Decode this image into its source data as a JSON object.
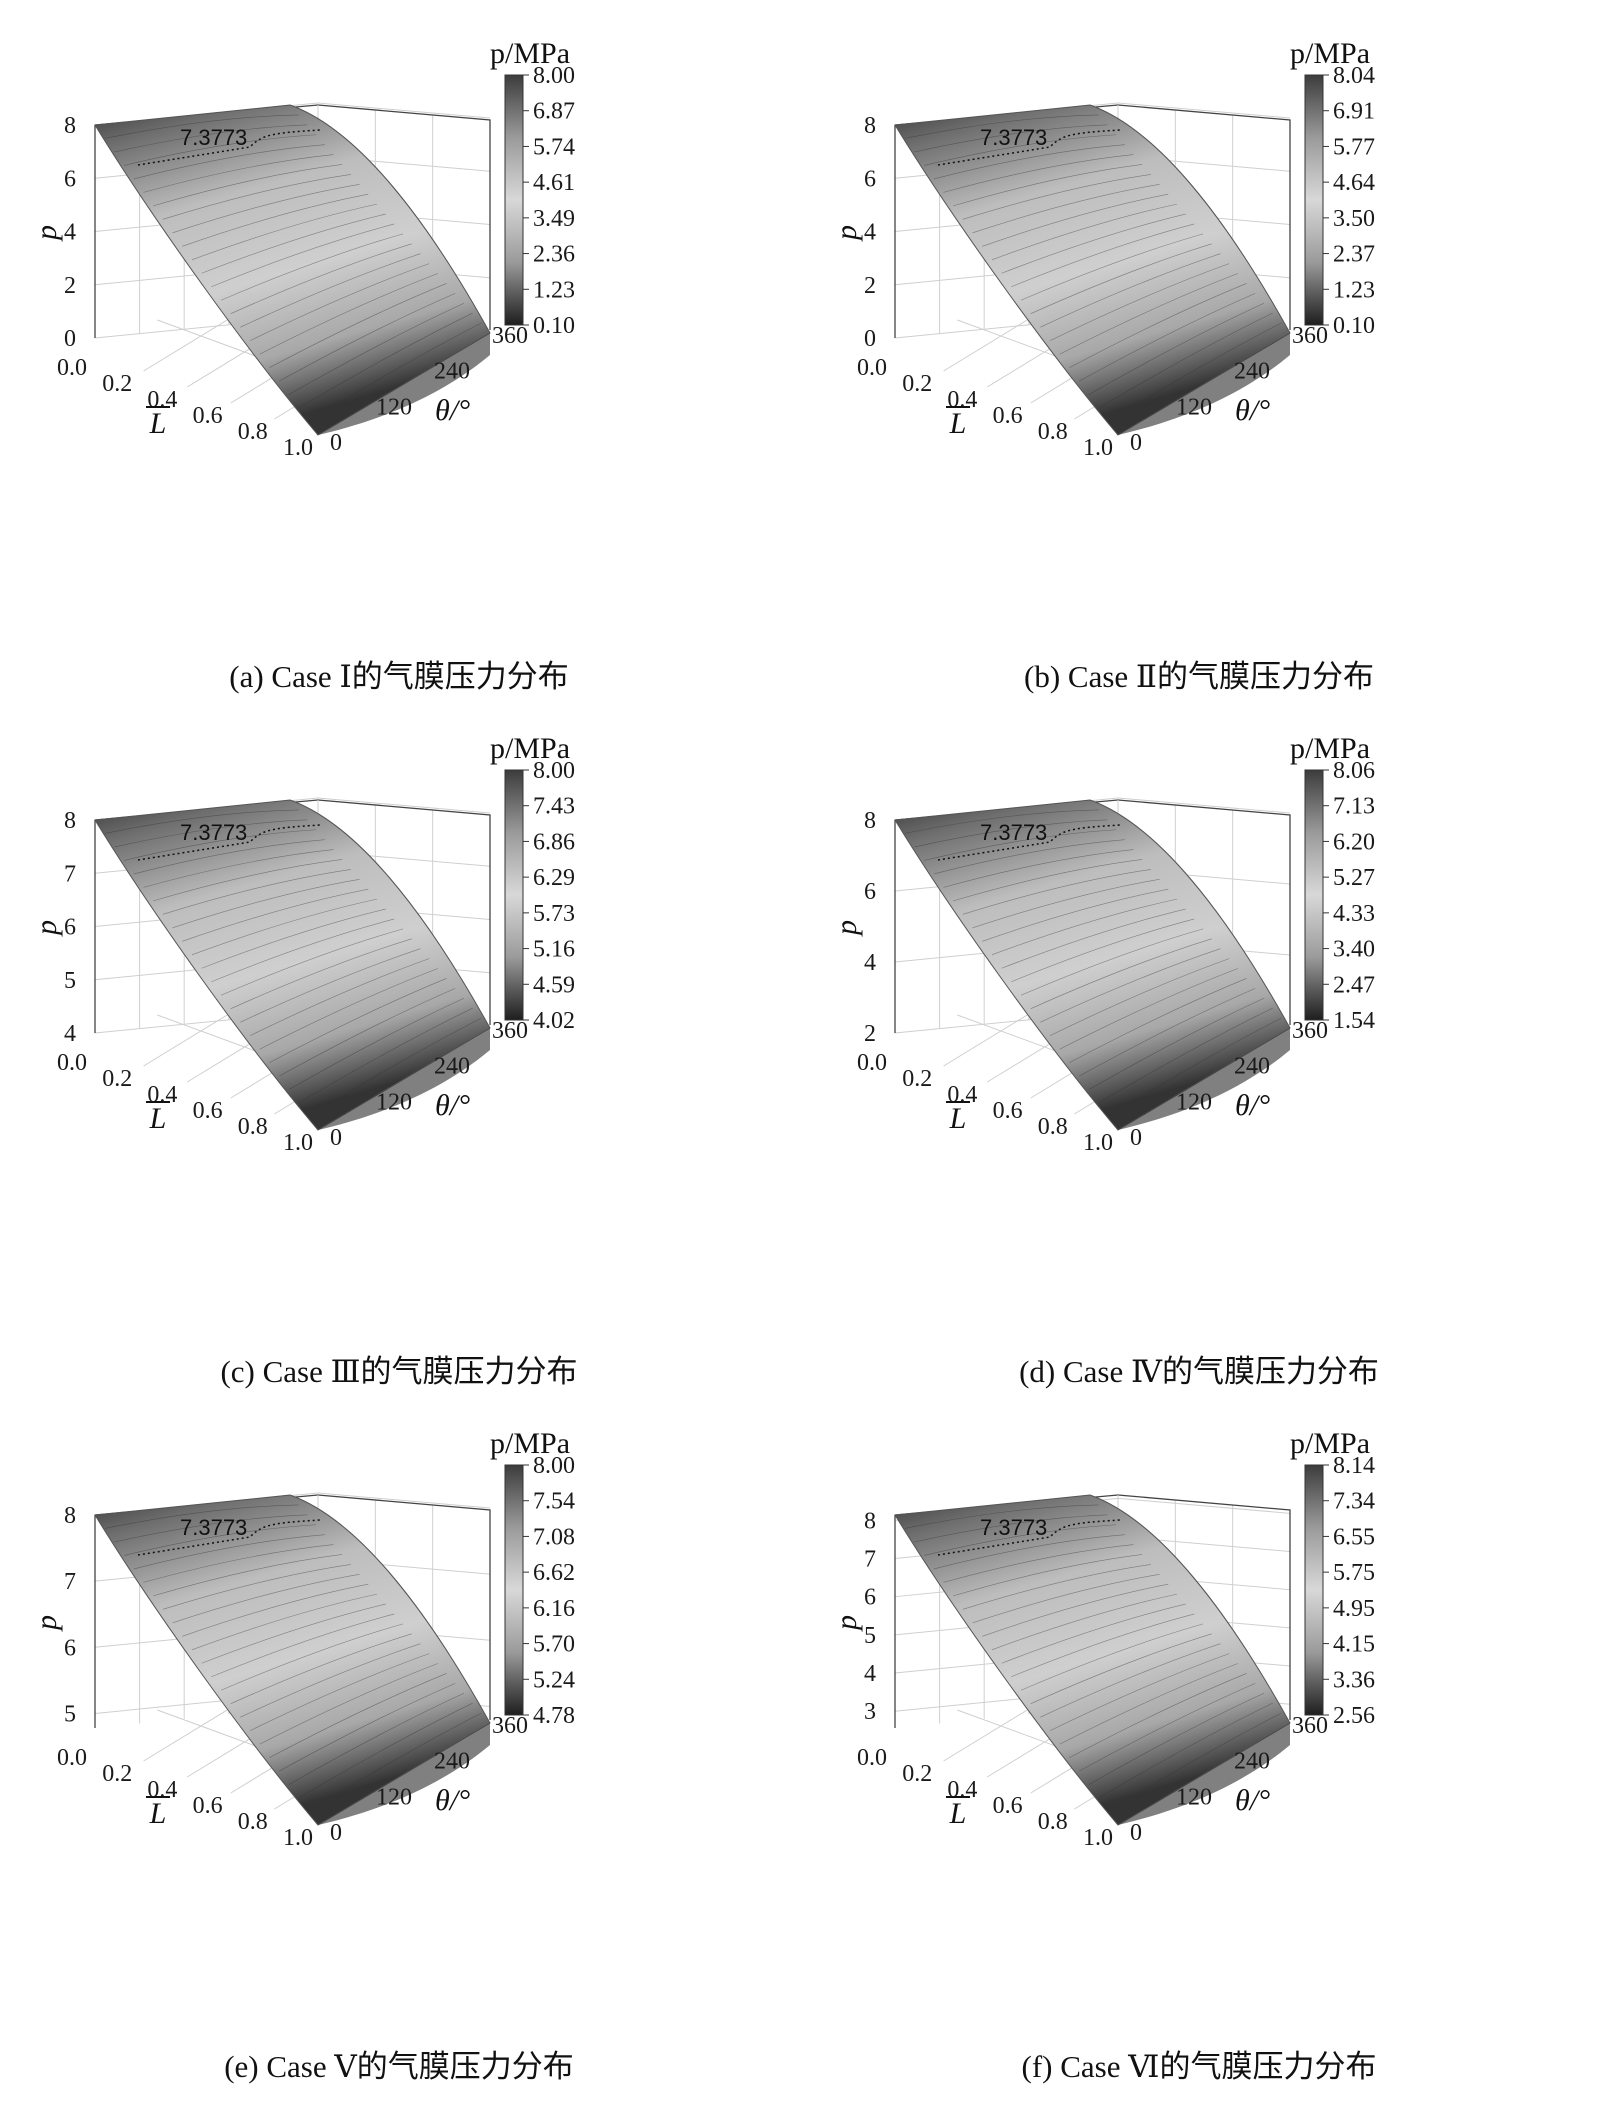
{
  "chart_data": [
    {
      "type": "surface3d",
      "caption": "(a) Case Ⅰ的气膜压力分布",
      "zlabel": "p",
      "xlabel": "L",
      "ylabel": "θ/°",
      "colorbar_title": "p/MPa",
      "x_ticks": [
        "0.0",
        "0.2",
        "0.4",
        "0.6",
        "0.8",
        "1.0"
      ],
      "y_ticks": [
        "0",
        "120",
        "240",
        "360"
      ],
      "z_ticks": [
        "0",
        "2",
        "4",
        "6",
        "8"
      ],
      "zlim": [
        0,
        8
      ],
      "colorbar_ticks": [
        "8.00",
        "6.87",
        "5.74",
        "4.61",
        "3.49",
        "2.36",
        "1.23",
        "0.10"
      ],
      "colorbar_range": [
        0.1,
        8.0
      ],
      "contour_label": "7.3773",
      "surface": {
        "p_max": 8.0,
        "p_min": 0.1
      }
    },
    {
      "type": "surface3d",
      "caption": "(b) Case Ⅱ的气膜压力分布",
      "zlabel": "p",
      "xlabel": "L",
      "ylabel": "θ/°",
      "colorbar_title": "p/MPa",
      "x_ticks": [
        "0.0",
        "0.2",
        "0.4",
        "0.6",
        "0.8",
        "1.0"
      ],
      "y_ticks": [
        "0",
        "120",
        "240",
        "360"
      ],
      "z_ticks": [
        "0",
        "2",
        "4",
        "6",
        "8"
      ],
      "zlim": [
        0,
        8
      ],
      "colorbar_ticks": [
        "8.04",
        "6.91",
        "5.77",
        "4.64",
        "3.50",
        "2.37",
        "1.23",
        "0.10"
      ],
      "colorbar_range": [
        0.1,
        8.04
      ],
      "contour_label": "7.3773",
      "surface": {
        "p_max": 8.04,
        "p_min": 0.1
      }
    },
    {
      "type": "surface3d",
      "caption": "(c) Case Ⅲ的气膜压力分布",
      "zlabel": "p",
      "xlabel": "L",
      "ylabel": "θ/°",
      "colorbar_title": "p/MPa",
      "x_ticks": [
        "0.0",
        "0.2",
        "0.4",
        "0.6",
        "0.8",
        "1.0"
      ],
      "y_ticks": [
        "0",
        "120",
        "240",
        "360"
      ],
      "z_ticks": [
        "4",
        "5",
        "6",
        "7",
        "8"
      ],
      "zlim": [
        4,
        8
      ],
      "colorbar_ticks": [
        "8.00",
        "7.43",
        "6.86",
        "6.29",
        "5.73",
        "5.16",
        "4.59",
        "4.02"
      ],
      "colorbar_range": [
        4.02,
        8.0
      ],
      "contour_label": "7.3773",
      "surface": {
        "p_max": 8.0,
        "p_min": 4.02
      }
    },
    {
      "type": "surface3d",
      "caption": "(d) Case Ⅳ的气膜压力分布",
      "zlabel": "p",
      "xlabel": "L",
      "ylabel": "θ/°",
      "colorbar_title": "p/MPa",
      "x_ticks": [
        "0.0",
        "0.2",
        "0.4",
        "0.6",
        "0.8",
        "1.0"
      ],
      "y_ticks": [
        "0",
        "120",
        "240",
        "360"
      ],
      "z_ticks": [
        "2",
        "4",
        "6",
        "8"
      ],
      "zlim": [
        2,
        8
      ],
      "colorbar_ticks": [
        "8.06",
        "7.13",
        "6.20",
        "5.27",
        "4.33",
        "3.40",
        "2.47",
        "1.54"
      ],
      "colorbar_range": [
        1.54,
        8.06
      ],
      "contour_label": "7.3773",
      "surface": {
        "p_max": 8.06,
        "p_min": 1.54
      }
    },
    {
      "type": "surface3d",
      "caption": "(e) Case Ⅴ的气膜压力分布",
      "zlabel": "p",
      "xlabel": "L",
      "ylabel": "θ/°",
      "colorbar_title": "p/MPa",
      "x_ticks": [
        "0.0",
        "0.2",
        "0.4",
        "0.6",
        "0.8",
        "1.0"
      ],
      "y_ticks": [
        "0",
        "120",
        "240",
        "360"
      ],
      "z_ticks": [
        "5",
        "6",
        "7",
        "8"
      ],
      "zlim": [
        4.78,
        8
      ],
      "colorbar_ticks": [
        "8.00",
        "7.54",
        "7.08",
        "6.62",
        "6.16",
        "5.70",
        "5.24",
        "4.78"
      ],
      "colorbar_range": [
        4.78,
        8.0
      ],
      "contour_label": "7.3773",
      "surface": {
        "p_max": 8.0,
        "p_min": 4.78
      }
    },
    {
      "type": "surface3d",
      "caption": "(f) Case Ⅵ的气膜压力分布",
      "zlabel": "p",
      "xlabel": "L",
      "ylabel": "θ/°",
      "colorbar_title": "p/MPa",
      "x_ticks": [
        "0.0",
        "0.2",
        "0.4",
        "0.6",
        "0.8",
        "1.0"
      ],
      "y_ticks": [
        "0",
        "120",
        "240",
        "360"
      ],
      "z_ticks": [
        "3",
        "4",
        "5",
        "6",
        "7",
        "8"
      ],
      "zlim": [
        2.56,
        8.14
      ],
      "colorbar_ticks": [
        "8.14",
        "7.34",
        "6.55",
        "5.75",
        "4.95",
        "4.15",
        "3.36",
        "2.56"
      ],
      "colorbar_range": [
        2.56,
        8.14
      ],
      "contour_label": "7.3773",
      "surface": {
        "p_max": 8.14,
        "p_min": 2.56
      }
    }
  ]
}
